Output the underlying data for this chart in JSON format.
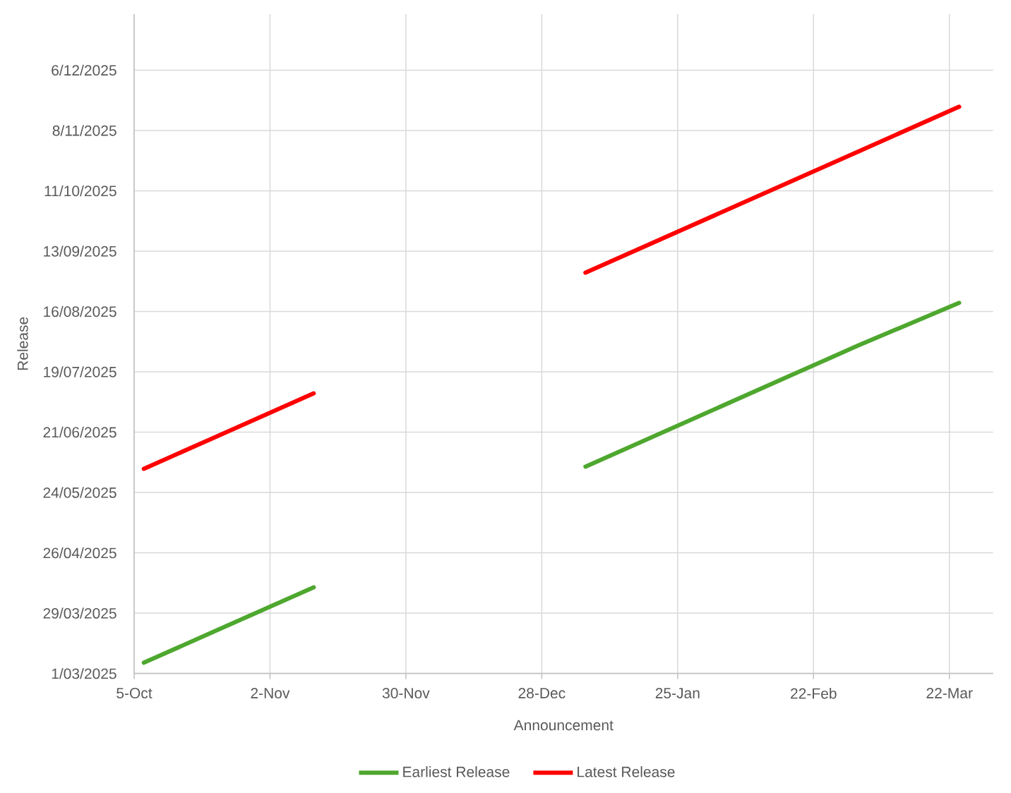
{
  "chart_data": {
    "type": "line",
    "xlabel": "Announcement",
    "ylabel": "Release",
    "xlim": [
      "2024-10-05",
      "2025-03-31"
    ],
    "ylim": [
      "2025-03-01",
      "2026-01-01"
    ],
    "xticks": [
      {
        "value": "2024-10-05",
        "label": "5-Oct"
      },
      {
        "value": "2024-11-02",
        "label": "2-Nov"
      },
      {
        "value": "2024-11-30",
        "label": "30-Nov"
      },
      {
        "value": "2024-12-28",
        "label": "28-Dec"
      },
      {
        "value": "2025-01-25",
        "label": "25-Jan"
      },
      {
        "value": "2025-02-22",
        "label": "22-Feb"
      },
      {
        "value": "2025-03-22",
        "label": "22-Mar"
      }
    ],
    "yticks": [
      {
        "value": "2025-03-01",
        "label": "1/03/2025"
      },
      {
        "value": "2025-03-29",
        "label": "29/03/2025"
      },
      {
        "value": "2025-04-26",
        "label": "26/04/2025"
      },
      {
        "value": "2025-05-24",
        "label": "24/05/2025"
      },
      {
        "value": "2025-06-21",
        "label": "21/06/2025"
      },
      {
        "value": "2025-07-19",
        "label": "19/07/2025"
      },
      {
        "value": "2025-08-16",
        "label": "16/08/2025"
      },
      {
        "value": "2025-09-13",
        "label": "13/09/2025"
      },
      {
        "value": "2025-10-11",
        "label": "11/10/2025"
      },
      {
        "value": "2025-11-08",
        "label": "8/11/2025"
      },
      {
        "value": "2025-12-06",
        "label": "6/12/2025"
      }
    ],
    "x": [
      "2024-10-07",
      "2024-10-21",
      "2024-11-11",
      "2024-11-18",
      "2025-01-06",
      "2025-01-27",
      "2025-02-17",
      "2025-03-03",
      "2025-03-24"
    ],
    "series": [
      {
        "name": "Earliest Release",
        "color": "#4ea72e",
        "values": [
          20153,
          20167,
          20188,
          null,
          20244,
          20265,
          20286,
          20300,
          20320
        ]
      },
      {
        "name": "Latest Release",
        "color": "#ff0000",
        "values": [
          20243,
          20257,
          20278,
          null,
          20334,
          20355,
          20376,
          20390,
          20411
        ]
      }
    ],
    "grid": true,
    "legend": "bottom"
  }
}
